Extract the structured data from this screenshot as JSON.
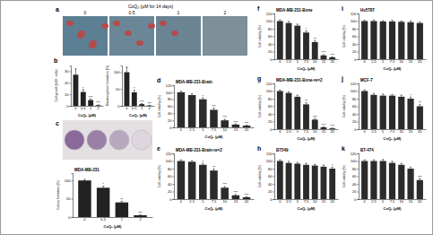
{
  "figure": {
    "panel": "a",
    "title": "CoQ₀ (μM for 14 days)",
    "labels": [
      "0",
      "0.5",
      "1",
      "2"
    ]
  },
  "chart_data": [
    {
      "type": "bar",
      "panel": "b",
      "categories": [
        "0",
        "0.5",
        "1",
        "2"
      ],
      "values": [
        27,
        12,
        5,
        0.5
      ],
      "errors": [
        5,
        2,
        1,
        0.3
      ],
      "stars": [
        null,
        "*",
        "***",
        "***"
      ],
      "color": "#222222",
      "ylim": [
        0,
        35
      ],
      "yticks": [
        0,
        10,
        20,
        30
      ],
      "xlabel": "CoQ₀ (μM)",
      "ylabel": "Cell growth (×10⁴ cells)"
    },
    {
      "type": "bar",
      "categories": [
        "0",
        "0.5",
        "1",
        "2"
      ],
      "values": [
        100,
        40,
        5,
        1
      ],
      "errors": [
        15,
        6,
        2,
        0.5
      ],
      "stars": [
        null,
        "*",
        "***",
        "***"
      ],
      "color": "#222222",
      "ylim": [
        0,
        120
      ],
      "yticks": [
        0,
        50,
        100
      ],
      "xlabel": "CoQ₀ (μM)",
      "ylabel": "Mammosphere formation (%)"
    },
    {
      "type": "bar",
      "panel": "c",
      "title": "MDA-MB-231",
      "categories": [
        "0",
        "0.5",
        "1",
        "2"
      ],
      "values": [
        100,
        80,
        40,
        5
      ],
      "errors": [
        3,
        4,
        3,
        1
      ],
      "stars": [
        null,
        "*",
        "**",
        "***"
      ],
      "color": "#222222",
      "ylim": [
        0,
        120
      ],
      "yticks": [
        0,
        50,
        100
      ],
      "xlabel": "CoQ₀ (μM)",
      "ylabel": "Colony formation (%)"
    },
    {
      "type": "bar",
      "panel": "d",
      "title": "MDA-MB-231-Brain",
      "categories": [
        "0",
        "2.5",
        "5",
        "7.5",
        "10",
        "15",
        "20"
      ],
      "values": [
        100,
        92,
        80,
        50,
        20,
        8,
        5
      ],
      "errors": [
        3,
        4,
        4,
        5,
        3,
        2,
        1
      ],
      "stars": [
        null,
        null,
        "*",
        "***",
        "***",
        "***",
        "***"
      ],
      "color": "#2b2b2b",
      "ylim": [
        0,
        120
      ],
      "yticks": [
        0,
        20,
        40,
        60,
        80,
        100,
        120
      ],
      "xlabel": "CoQ₀ (μM)",
      "ylabel": "Cell viability (%)"
    },
    {
      "type": "bar",
      "panel": "e",
      "title": "MDA-MB-231-Brain-re×2",
      "categories": [
        "0",
        "2.5",
        "5",
        "7.5",
        "10",
        "15",
        "20"
      ],
      "values": [
        100,
        98,
        90,
        75,
        30,
        10,
        5
      ],
      "errors": [
        3,
        3,
        4,
        4,
        3,
        2,
        1
      ],
      "stars": [
        null,
        null,
        "*",
        "**",
        "***",
        "***",
        "***"
      ],
      "color": "#2b2b2b",
      "ylim": [
        0,
        120
      ],
      "yticks": [
        0,
        20,
        40,
        60,
        80,
        100,
        120
      ],
      "xlabel": "CoQ₀ (μM)",
      "ylabel": "Cell viability (%)"
    },
    {
      "type": "bar",
      "panel": "f",
      "title": "MDA-MB-231-Bone",
      "categories": [
        "0",
        "2.5",
        "5",
        "7.5",
        "10",
        "15",
        "20"
      ],
      "values": [
        100,
        95,
        88,
        70,
        45,
        10,
        5
      ],
      "errors": [
        3,
        4,
        4,
        4,
        4,
        2,
        1
      ],
      "stars": [
        null,
        null,
        null,
        "*",
        "**",
        "***",
        "***"
      ],
      "color": "#2b2b2b",
      "ylim": [
        0,
        120
      ],
      "yticks": [
        0,
        20,
        40,
        60,
        80,
        100,
        120
      ],
      "xlabel": "CoQ₀ (μM)",
      "ylabel": "Cell viability (%)"
    },
    {
      "type": "bar",
      "panel": "g",
      "title": "MDA-MB-231-Bone-re×2",
      "categories": [
        "0",
        "2.5",
        "5",
        "7.5",
        "10",
        "15",
        "20"
      ],
      "values": [
        100,
        95,
        85,
        65,
        25,
        5,
        2
      ],
      "errors": [
        3,
        3,
        4,
        4,
        3,
        1,
        1
      ],
      "stars": [
        null,
        null,
        null,
        "**",
        "***",
        "***",
        "***"
      ],
      "color": "#2b2b2b",
      "ylim": [
        0,
        120
      ],
      "yticks": [
        0,
        20,
        40,
        60,
        80,
        100,
        120
      ],
      "xlabel": "CoQ₀ (μM)",
      "ylabel": "Cell viability (%)"
    },
    {
      "type": "bar",
      "panel": "h",
      "title": "BT549",
      "categories": [
        "0",
        "2.5",
        "5",
        "7.5",
        "10",
        "15",
        "20"
      ],
      "values": [
        100,
        95,
        93,
        90,
        88,
        85,
        80
      ],
      "errors": [
        3,
        4,
        3,
        4,
        3,
        4,
        4
      ],
      "stars": [
        null,
        null,
        null,
        null,
        null,
        null,
        "*"
      ],
      "color": "#2b2b2b",
      "ylim": [
        0,
        120
      ],
      "yticks": [
        0,
        20,
        40,
        60,
        80,
        100,
        120
      ],
      "xlabel": "CoQ₀ (μM)",
      "ylabel": "Cell viability (%)"
    },
    {
      "type": "bar",
      "panel": "i",
      "title": "Hs578T",
      "categories": [
        "0",
        "2.5",
        "5",
        "7.5",
        "10",
        "15",
        "20"
      ],
      "values": [
        100,
        100,
        99,
        99,
        98,
        97,
        95
      ],
      "errors": [
        2,
        3,
        2,
        3,
        2,
        3,
        3
      ],
      "stars": [
        null,
        null,
        null,
        null,
        null,
        null,
        null
      ],
      "color": "#2b2b2b",
      "ylim": [
        0,
        120
      ],
      "yticks": [
        0,
        20,
        40,
        60,
        80,
        100,
        120
      ],
      "xlabel": "CoQ₀ (μM)",
      "ylabel": "Cell viability (%)"
    },
    {
      "type": "bar",
      "panel": "j",
      "title": "MCF-7",
      "categories": [
        "0",
        "2.5",
        "5",
        "7.5",
        "10",
        "15",
        "20"
      ],
      "values": [
        100,
        90,
        88,
        88,
        85,
        80,
        60
      ],
      "errors": [
        3,
        4,
        4,
        3,
        4,
        4,
        4
      ],
      "stars": [
        null,
        null,
        null,
        null,
        null,
        "*",
        "**"
      ],
      "color": "#2b2b2b",
      "ylim": [
        0,
        120
      ],
      "yticks": [
        0,
        20,
        40,
        60,
        80,
        100,
        120
      ],
      "xlabel": "CoQ₀ (μM)",
      "ylabel": "Cell viability (%)"
    },
    {
      "type": "bar",
      "panel": "k",
      "title": "BT-474",
      "categories": [
        "0",
        "2.5",
        "5",
        "7.5",
        "10",
        "15",
        "20"
      ],
      "values": [
        100,
        100,
        100,
        95,
        90,
        80,
        50
      ],
      "errors": [
        3,
        3,
        4,
        4,
        4,
        4,
        4
      ],
      "stars": [
        null,
        null,
        null,
        null,
        null,
        null,
        "***"
      ],
      "color": "#2b2b2b",
      "ylim": [
        0,
        120
      ],
      "yticks": [
        0,
        20,
        40,
        60,
        80,
        100,
        120
      ],
      "xlabel": "CoQ₀ (μM)",
      "ylabel": "Cell viability (%)"
    }
  ]
}
